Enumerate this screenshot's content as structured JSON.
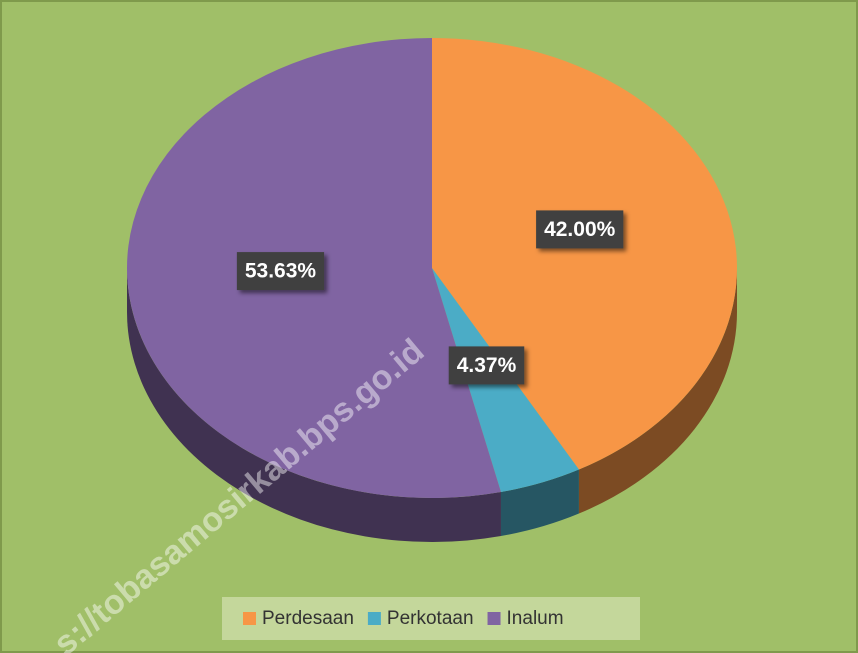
{
  "chart_data": {
    "type": "pie",
    "categories": [
      "Perdesaan",
      "Perkotaan",
      "Inalum"
    ],
    "values": [
      42.0,
      4.37,
      53.63
    ],
    "value_labels": [
      "42.00%",
      "4.37%",
      "53.63%"
    ],
    "colors": [
      "#f79646",
      "#4bacc6",
      "#8064a2"
    ],
    "legend": "bottom",
    "watermark": "s://tobasamosirkab.bps.go.id"
  }
}
